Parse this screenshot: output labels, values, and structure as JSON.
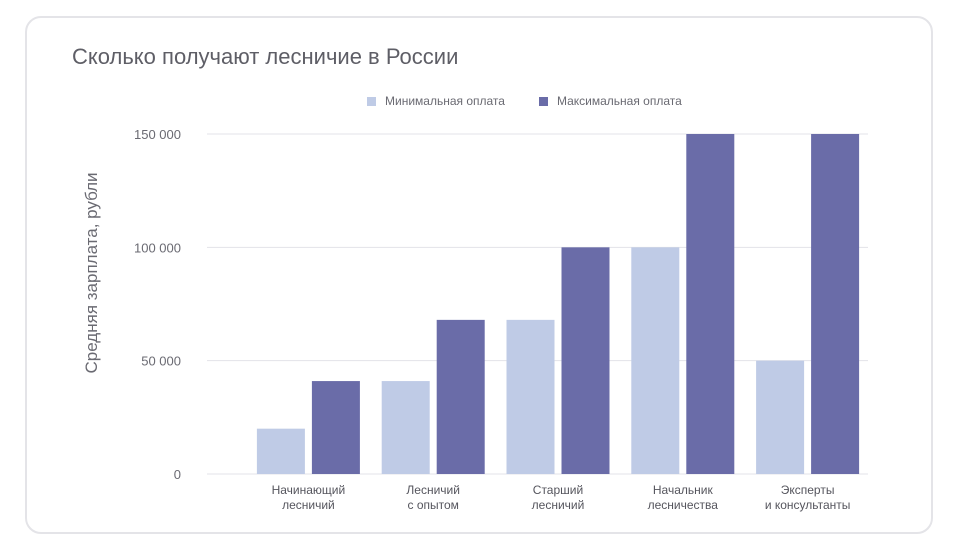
{
  "chart_data": {
    "type": "bar",
    "title": "Сколько получают лесничие в России",
    "ylabel": "Средняя зарплата, рубли",
    "xlabel": "",
    "ylim": [
      0,
      150000
    ],
    "yticks": [
      0,
      50000,
      100000,
      150000
    ],
    "ytick_labels": [
      "0",
      "50 000",
      "100 000",
      "150 000"
    ],
    "categories": [
      [
        "Начинающий",
        "лесничий"
      ],
      [
        "Лесничий",
        "с опытом"
      ],
      [
        "Старший",
        "лесничий"
      ],
      [
        "Начальник",
        "лесничества"
      ],
      [
        "Эксперты",
        "и консультанты"
      ]
    ],
    "series": [
      {
        "name": "Минимальная оплата",
        "color": "#bfcbe6",
        "values": [
          20000,
          41000,
          68000,
          100000,
          50000
        ]
      },
      {
        "name": "Максимальная оплата",
        "color": "#6a6ca8",
        "values": [
          41000,
          68000,
          100000,
          150000,
          150000
        ]
      }
    ],
    "grid": true,
    "legend_position": "top-center"
  }
}
